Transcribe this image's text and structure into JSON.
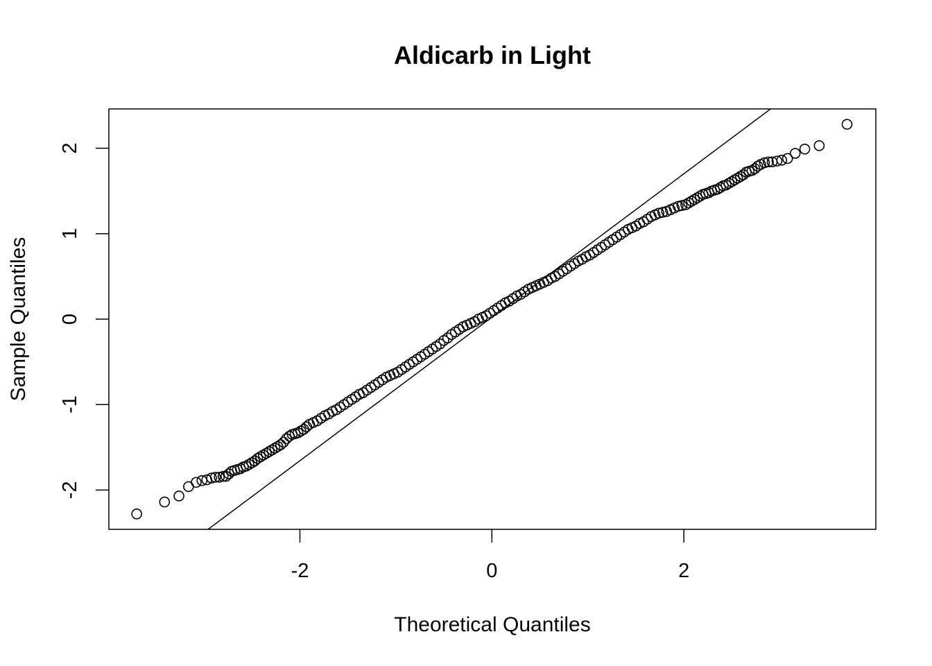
{
  "chart_data": {
    "type": "scatter",
    "title": "Aldicarb in Light",
    "xlabel": "Theoretical Quantiles",
    "ylabel": "Sample Quantiles",
    "xlim": [
      -3.99,
      4.0
    ],
    "ylim": [
      -2.46,
      2.46
    ],
    "xticks": [
      -2,
      0,
      2
    ],
    "xtick_labels": [
      "-2",
      "0",
      "2"
    ],
    "yticks": [
      -2,
      -1,
      0,
      1,
      2
    ],
    "ytick_labels": [
      "-2",
      "-1",
      "0",
      "1",
      "2"
    ],
    "grid": false,
    "reference_line": {
      "slope": 0.8395,
      "intercept": 0.022
    },
    "series": [
      {
        "marker": "open-circle",
        "points": [
          [
            -3.7,
            -2.28
          ],
          [
            -3.41,
            -2.14
          ],
          [
            -3.26,
            -2.07
          ],
          [
            -3.16,
            -1.96
          ],
          [
            -3.08,
            -1.91
          ],
          [
            -3.02,
            -1.89
          ],
          [
            -2.97,
            -1.88
          ],
          [
            -2.92,
            -1.86
          ],
          [
            -2.88,
            -1.85
          ],
          [
            -2.84,
            -1.85
          ],
          [
            -2.8,
            -1.84
          ],
          [
            -2.77,
            -1.84
          ],
          [
            -2.74,
            -1.81
          ],
          [
            -2.71,
            -1.78
          ],
          [
            -2.68,
            -1.77
          ],
          [
            -2.65,
            -1.76
          ],
          [
            -2.62,
            -1.75
          ],
          [
            -2.59,
            -1.73
          ],
          [
            -2.56,
            -1.72
          ],
          [
            -2.53,
            -1.7
          ],
          [
            -2.5,
            -1.68
          ],
          [
            -2.47,
            -1.66
          ],
          [
            -2.44,
            -1.63
          ],
          [
            -2.41,
            -1.61
          ],
          [
            -2.38,
            -1.59
          ],
          [
            -2.35,
            -1.57
          ],
          [
            -2.32,
            -1.55
          ],
          [
            -2.29,
            -1.53
          ],
          [
            -2.26,
            -1.51
          ],
          [
            -2.23,
            -1.49
          ],
          [
            -2.2,
            -1.47
          ],
          [
            -2.17,
            -1.44
          ],
          [
            -2.14,
            -1.4
          ],
          [
            -2.11,
            -1.37
          ],
          [
            -2.08,
            -1.35
          ],
          [
            -2.05,
            -1.34
          ],
          [
            -2.02,
            -1.33
          ],
          [
            -1.99,
            -1.31
          ],
          [
            -1.96,
            -1.29
          ],
          [
            -1.93,
            -1.26
          ],
          [
            -1.9,
            -1.23
          ],
          [
            -1.86,
            -1.21
          ],
          [
            -1.82,
            -1.19
          ],
          [
            -1.78,
            -1.16
          ],
          [
            -1.74,
            -1.13
          ],
          [
            -1.7,
            -1.11
          ],
          [
            -1.66,
            -1.08
          ],
          [
            -1.62,
            -1.06
          ],
          [
            -1.58,
            -1.03
          ],
          [
            -1.54,
            -1.0
          ],
          [
            -1.5,
            -0.97
          ],
          [
            -1.46,
            -0.94
          ],
          [
            -1.42,
            -0.91
          ],
          [
            -1.38,
            -0.88
          ],
          [
            -1.34,
            -0.86
          ],
          [
            -1.3,
            -0.83
          ],
          [
            -1.26,
            -0.8
          ],
          [
            -1.22,
            -0.77
          ],
          [
            -1.18,
            -0.74
          ],
          [
            -1.14,
            -0.71
          ],
          [
            -1.1,
            -0.68
          ],
          [
            -1.06,
            -0.66
          ],
          [
            -1.02,
            -0.64
          ],
          [
            -0.98,
            -0.62
          ],
          [
            -0.94,
            -0.59
          ],
          [
            -0.9,
            -0.56
          ],
          [
            -0.86,
            -0.53
          ],
          [
            -0.82,
            -0.5
          ],
          [
            -0.78,
            -0.47
          ],
          [
            -0.74,
            -0.44
          ],
          [
            -0.7,
            -0.41
          ],
          [
            -0.66,
            -0.38
          ],
          [
            -0.62,
            -0.35
          ],
          [
            -0.58,
            -0.32
          ],
          [
            -0.54,
            -0.29
          ],
          [
            -0.5,
            -0.25
          ],
          [
            -0.46,
            -0.22
          ],
          [
            -0.42,
            -0.18
          ],
          [
            -0.38,
            -0.15
          ],
          [
            -0.34,
            -0.12
          ],
          [
            -0.3,
            -0.09
          ],
          [
            -0.26,
            -0.07
          ],
          [
            -0.22,
            -0.05
          ],
          [
            -0.18,
            -0.03
          ],
          [
            -0.14,
            0.0
          ],
          [
            -0.1,
            0.02
          ],
          [
            -0.06,
            0.04
          ],
          [
            -0.02,
            0.07
          ],
          [
            0.02,
            0.1
          ],
          [
            0.06,
            0.13
          ],
          [
            0.1,
            0.16
          ],
          [
            0.14,
            0.19
          ],
          [
            0.18,
            0.21
          ],
          [
            0.22,
            0.24
          ],
          [
            0.26,
            0.27
          ],
          [
            0.3,
            0.29
          ],
          [
            0.34,
            0.32
          ],
          [
            0.38,
            0.35
          ],
          [
            0.42,
            0.37
          ],
          [
            0.46,
            0.39
          ],
          [
            0.5,
            0.41
          ],
          [
            0.54,
            0.43
          ],
          [
            0.58,
            0.45
          ],
          [
            0.62,
            0.48
          ],
          [
            0.66,
            0.5
          ],
          [
            0.7,
            0.53
          ],
          [
            0.74,
            0.56
          ],
          [
            0.78,
            0.59
          ],
          [
            0.82,
            0.62
          ],
          [
            0.86,
            0.65
          ],
          [
            0.9,
            0.68
          ],
          [
            0.94,
            0.7
          ],
          [
            0.98,
            0.73
          ],
          [
            1.02,
            0.75
          ],
          [
            1.06,
            0.78
          ],
          [
            1.1,
            0.81
          ],
          [
            1.14,
            0.84
          ],
          [
            1.18,
            0.87
          ],
          [
            1.22,
            0.9
          ],
          [
            1.26,
            0.93
          ],
          [
            1.3,
            0.96
          ],
          [
            1.34,
            0.99
          ],
          [
            1.38,
            1.02
          ],
          [
            1.42,
            1.05
          ],
          [
            1.46,
            1.07
          ],
          [
            1.5,
            1.09
          ],
          [
            1.54,
            1.12
          ],
          [
            1.58,
            1.14
          ],
          [
            1.62,
            1.17
          ],
          [
            1.66,
            1.2
          ],
          [
            1.7,
            1.22
          ],
          [
            1.74,
            1.24
          ],
          [
            1.78,
            1.25
          ],
          [
            1.82,
            1.26
          ],
          [
            1.86,
            1.28
          ],
          [
            1.9,
            1.3
          ],
          [
            1.94,
            1.32
          ],
          [
            1.98,
            1.33
          ],
          [
            2.02,
            1.34
          ],
          [
            2.05,
            1.36
          ],
          [
            2.08,
            1.38
          ],
          [
            2.11,
            1.4
          ],
          [
            2.14,
            1.42
          ],
          [
            2.17,
            1.44
          ],
          [
            2.2,
            1.46
          ],
          [
            2.23,
            1.47
          ],
          [
            2.26,
            1.48
          ],
          [
            2.29,
            1.5
          ],
          [
            2.32,
            1.51
          ],
          [
            2.35,
            1.52
          ],
          [
            2.38,
            1.54
          ],
          [
            2.41,
            1.56
          ],
          [
            2.44,
            1.57
          ],
          [
            2.47,
            1.59
          ],
          [
            2.5,
            1.61
          ],
          [
            2.53,
            1.63
          ],
          [
            2.56,
            1.65
          ],
          [
            2.59,
            1.67
          ],
          [
            2.62,
            1.69
          ],
          [
            2.65,
            1.72
          ],
          [
            2.68,
            1.73
          ],
          [
            2.71,
            1.74
          ],
          [
            2.74,
            1.76
          ],
          [
            2.77,
            1.79
          ],
          [
            2.8,
            1.81
          ],
          [
            2.84,
            1.83
          ],
          [
            2.88,
            1.84
          ],
          [
            2.92,
            1.84
          ],
          [
            2.97,
            1.85
          ],
          [
            3.02,
            1.86
          ],
          [
            3.08,
            1.88
          ],
          [
            3.16,
            1.94
          ],
          [
            3.26,
            1.99
          ],
          [
            3.41,
            2.03
          ],
          [
            3.7,
            2.28
          ]
        ]
      }
    ]
  }
}
